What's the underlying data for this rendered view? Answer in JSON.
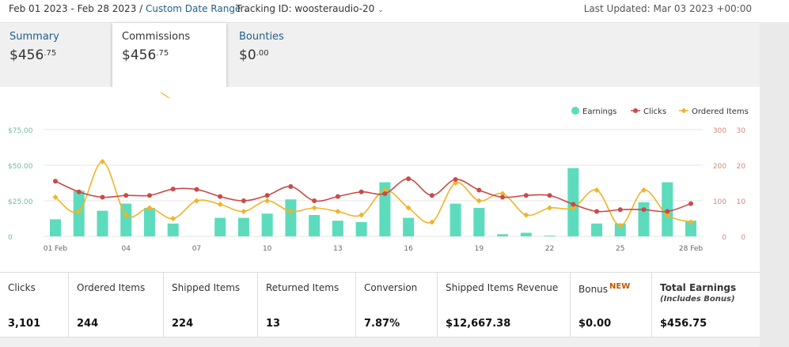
{
  "topbar": {
    "date_range": "Feb 01 2023 - Feb 28 2023",
    "separator": " / ",
    "range_type": "Custom Date Range",
    "tracking_id": "Tracking ID: woosteraudio-20",
    "last_updated": "Last Updated: Mar 03 2023 +00:00"
  },
  "tabs": [
    {
      "label": "Summary",
      "dollar": "$",
      "whole": "456",
      "cents": ".75"
    },
    {
      "label": "Commissions",
      "dollar": "$",
      "whole": "456",
      "cents": ".75"
    },
    {
      "label": "Bounties",
      "dollar": "$",
      "whole": "0",
      "cents": ".00"
    }
  ],
  "stats": [
    {
      "label": "Clicks",
      "value": "3,101"
    },
    {
      "label": "Ordered Items",
      "value": "244"
    },
    {
      "label": "Shipped Items",
      "value": "224"
    },
    {
      "label": "Returned Items",
      "value": "13"
    },
    {
      "label": "Conversion",
      "value": "7.87%"
    },
    {
      "label": "Shipped Items Revenue",
      "value": "$12,667.38"
    },
    {
      "label": "Bonus",
      "badge": "NEW",
      "value": "$0.00"
    },
    {
      "label": "Total Earnings",
      "sublabel": "(Includes Bonus)",
      "value": "$456.75"
    }
  ],
  "chart_data": {
    "type": "bar",
    "legend": [
      "Earnings",
      "Clicks",
      "Ordered Items"
    ],
    "legend_position": "top-right",
    "colors": {
      "earnings": "#5cdcbd",
      "clicks": "#c94a48",
      "ordered": "#f0b429",
      "grid": "#e6e6e6",
      "left_axis": "#6cbfa0",
      "right_axis": "#d08a80"
    },
    "x_ticks": [
      "01 Feb",
      "04",
      "07",
      "10",
      "13",
      "16",
      "19",
      "22",
      "25",
      "28 Feb"
    ],
    "x": [
      1,
      2,
      3,
      4,
      5,
      6,
      7,
      8,
      9,
      10,
      11,
      12,
      13,
      14,
      15,
      16,
      17,
      18,
      19,
      20,
      21,
      22,
      23,
      24,
      25,
      26,
      27,
      28
    ],
    "y_left": {
      "ticks": [
        "0",
        "$25.00",
        "$50.00",
        "$75.00"
      ],
      "ylim": [
        0,
        75
      ]
    },
    "y_right_clicks": {
      "ticks": [
        "0",
        "100",
        "200",
        "300"
      ],
      "ylim": [
        0,
        300
      ]
    },
    "y_right_items": {
      "ticks": [
        "0",
        "10",
        "20",
        "30"
      ],
      "ylim": [
        0,
        30
      ]
    },
    "series": [
      {
        "name": "Earnings",
        "axis": "left",
        "values": [
          12,
          32,
          18,
          23,
          20,
          9,
          0,
          13,
          13,
          16,
          26,
          15,
          11,
          10,
          38,
          13,
          0,
          23,
          20,
          1.5,
          2.5,
          0.5,
          48,
          9,
          9,
          24,
          38,
          11
        ]
      },
      {
        "name": "Clicks",
        "axis": "right_clicks",
        "values": [
          155,
          125,
          110,
          115,
          115,
          133,
          132,
          112,
          100,
          115,
          140,
          100,
          112,
          125,
          120,
          162,
          115,
          160,
          130,
          110,
          115,
          115,
          90,
          70,
          75,
          75,
          70,
          92
        ]
      },
      {
        "name": "Ordered Items",
        "axis": "right_items",
        "values": [
          11,
          7,
          21,
          6,
          8,
          5,
          10,
          9,
          7,
          10,
          7,
          8,
          7,
          6,
          13,
          8,
          4,
          15,
          10,
          12,
          6,
          8,
          8,
          13,
          3,
          13,
          6,
          4
        ]
      }
    ]
  }
}
